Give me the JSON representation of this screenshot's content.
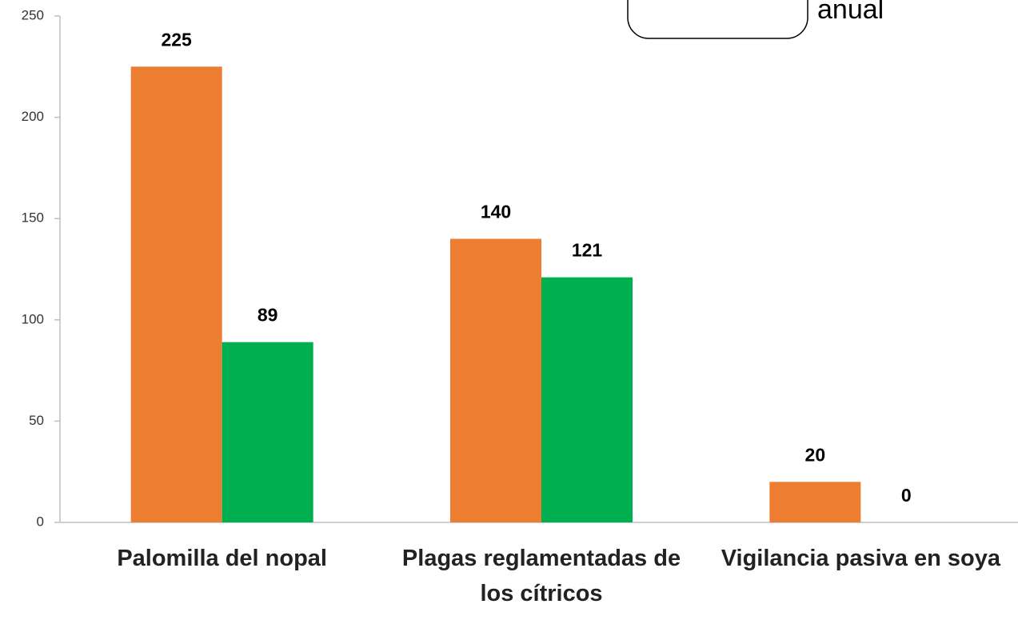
{
  "chart_data": {
    "type": "bar",
    "annotation": "anual",
    "categories": [
      "Palomilla del nopal",
      "Plagas reglamentadas de los cítricos",
      "Vigilancia pasiva en soya"
    ],
    "series": [
      {
        "color": "#ed7d31",
        "values": [
          225,
          140,
          20
        ]
      },
      {
        "color": "#00b050",
        "values": [
          89,
          121,
          0
        ]
      }
    ],
    "ylim": [
      0,
      250
    ],
    "yticks": [
      0,
      50,
      100,
      150,
      200,
      250
    ],
    "grid": false
  }
}
